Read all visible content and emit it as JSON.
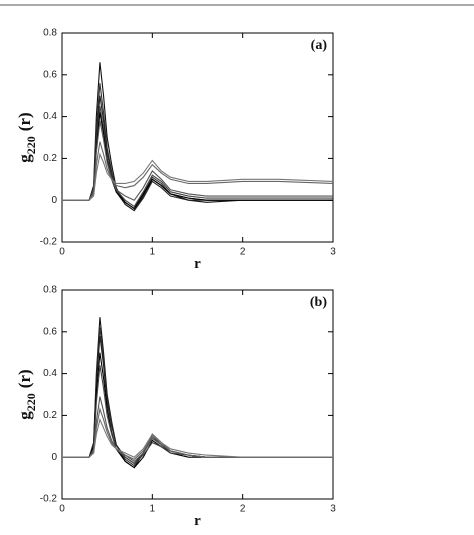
{
  "chart_data": [
    {
      "type": "line",
      "annotation": "(a)",
      "xlabel": "r",
      "ylabel": "g",
      "ylabel_sub": "220",
      "ylabel_tail": "(r)",
      "xlim": [
        0,
        3
      ],
      "ylim": [
        -0.2,
        0.8
      ],
      "xticks": [
        0,
        1,
        2,
        3
      ],
      "yticks": [
        -0.2,
        0,
        0.2,
        0.4,
        0.6,
        0.8
      ],
      "x": [
        0,
        0.3,
        0.35,
        0.38,
        0.42,
        0.46,
        0.5,
        0.55,
        0.6,
        0.7,
        0.8,
        0.9,
        1.0,
        1.1,
        1.2,
        1.4,
        1.6,
        2.0,
        2.4,
        3.0
      ],
      "series": [
        {
          "color": "#111111",
          "values": [
            0,
            0,
            0.07,
            0.4,
            0.66,
            0.5,
            0.3,
            0.17,
            0.06,
            -0.02,
            -0.05,
            0.02,
            0.1,
            0.07,
            0.03,
            0,
            -0.01,
            0,
            0,
            0
          ]
        },
        {
          "color": "#333333",
          "values": [
            0,
            0,
            0.06,
            0.34,
            0.56,
            0.42,
            0.25,
            0.14,
            0.05,
            -0.01,
            -0.04,
            0.03,
            0.11,
            0.08,
            0.03,
            0.01,
            0,
            0,
            0,
            0
          ]
        },
        {
          "color": "#222222",
          "values": [
            0,
            0,
            0.05,
            0.3,
            0.5,
            0.38,
            0.23,
            0.12,
            0.04,
            -0.02,
            -0.05,
            0.01,
            0.09,
            0.06,
            0.02,
            0,
            0,
            0,
            0,
            0
          ]
        },
        {
          "color": "#444444",
          "values": [
            0,
            0,
            0.05,
            0.27,
            0.45,
            0.34,
            0.2,
            0.11,
            0.05,
            0,
            -0.03,
            0.04,
            0.12,
            0.09,
            0.04,
            0.02,
            0.01,
            0.01,
            0.01,
            0.01
          ]
        },
        {
          "color": "#000000",
          "values": [
            0,
            0,
            0.04,
            0.25,
            0.42,
            0.32,
            0.19,
            0.1,
            0.04,
            -0.01,
            -0.04,
            0.03,
            0.1,
            0.07,
            0.03,
            0.01,
            0,
            0,
            0,
            0
          ]
        },
        {
          "color": "#555555",
          "values": [
            0,
            0,
            0.04,
            0.23,
            0.38,
            0.29,
            0.18,
            0.1,
            0.05,
            0.02,
            0,
            0.06,
            0.14,
            0.1,
            0.05,
            0.03,
            0.02,
            0.02,
            0.02,
            0.02
          ]
        },
        {
          "color": "#666666",
          "values": [
            0,
            0,
            0.03,
            0.17,
            0.28,
            0.22,
            0.15,
            0.1,
            0.07,
            0.06,
            0.07,
            0.11,
            0.17,
            0.13,
            0.1,
            0.08,
            0.08,
            0.09,
            0.09,
            0.08
          ]
        },
        {
          "color": "#777777",
          "values": [
            0,
            0,
            0.02,
            0.13,
            0.22,
            0.18,
            0.13,
            0.1,
            0.08,
            0.08,
            0.09,
            0.13,
            0.19,
            0.14,
            0.11,
            0.09,
            0.09,
            0.1,
            0.1,
            0.09
          ]
        }
      ]
    },
    {
      "type": "line",
      "annotation": "(b)",
      "xlabel": "r",
      "ylabel": "g",
      "ylabel_sub": "220",
      "ylabel_tail": "(r)",
      "xlim": [
        0,
        3
      ],
      "ylim": [
        -0.2,
        0.8
      ],
      "xticks": [
        0,
        1,
        2,
        3
      ],
      "yticks": [
        -0.2,
        0,
        0.2,
        0.4,
        0.6,
        0.8
      ],
      "x": [
        0,
        0.3,
        0.35,
        0.38,
        0.42,
        0.46,
        0.5,
        0.55,
        0.6,
        0.7,
        0.8,
        0.9,
        1.0,
        1.1,
        1.2,
        1.4,
        1.6,
        2.0,
        2.4,
        3.0
      ],
      "series": [
        {
          "color": "#111111",
          "values": [
            0,
            0,
            0.07,
            0.4,
            0.67,
            0.5,
            0.3,
            0.17,
            0.06,
            -0.02,
            -0.05,
            0.02,
            0.11,
            0.07,
            0.03,
            0.01,
            0,
            0,
            0,
            0
          ]
        },
        {
          "color": "#333333",
          "values": [
            0,
            0,
            0.06,
            0.37,
            0.62,
            0.47,
            0.28,
            0.16,
            0.06,
            -0.01,
            -0.04,
            0.02,
            0.1,
            0.06,
            0.03,
            0.01,
            0,
            0,
            0,
            0
          ]
        },
        {
          "color": "#222222",
          "values": [
            0,
            0,
            0.06,
            0.35,
            0.58,
            0.44,
            0.26,
            0.15,
            0.06,
            0,
            -0.03,
            0.02,
            0.09,
            0.06,
            0.02,
            0.01,
            0,
            0,
            0,
            0
          ]
        },
        {
          "color": "#000000",
          "values": [
            0,
            0,
            0.05,
            0.3,
            0.5,
            0.38,
            0.23,
            0.12,
            0.04,
            -0.02,
            -0.05,
            0,
            0.08,
            0.05,
            0.02,
            0,
            0,
            0,
            0,
            0
          ]
        },
        {
          "color": "#444444",
          "values": [
            0,
            0,
            0.04,
            0.26,
            0.44,
            0.33,
            0.2,
            0.11,
            0.04,
            0,
            -0.03,
            0.01,
            0.07,
            0.05,
            0.02,
            0.01,
            0,
            0,
            0,
            0
          ]
        },
        {
          "color": "#555555",
          "values": [
            0,
            0,
            0.03,
            0.17,
            0.29,
            0.22,
            0.14,
            0.08,
            0.04,
            0.01,
            -0.02,
            0.02,
            0.09,
            0.06,
            0.03,
            0.01,
            0,
            0,
            0,
            0
          ]
        },
        {
          "color": "#666666",
          "values": [
            0,
            0,
            0.02,
            0.14,
            0.23,
            0.18,
            0.12,
            0.07,
            0.04,
            0.01,
            -0.01,
            0.03,
            0.1,
            0.07,
            0.03,
            0.01,
            0,
            0,
            0,
            0
          ]
        },
        {
          "color": "#777777",
          "values": [
            0,
            0,
            0.02,
            0.11,
            0.18,
            0.14,
            0.1,
            0.06,
            0.04,
            0.02,
            0,
            0.04,
            0.11,
            0.07,
            0.04,
            0.02,
            0.01,
            0,
            0,
            0
          ]
        }
      ]
    }
  ]
}
